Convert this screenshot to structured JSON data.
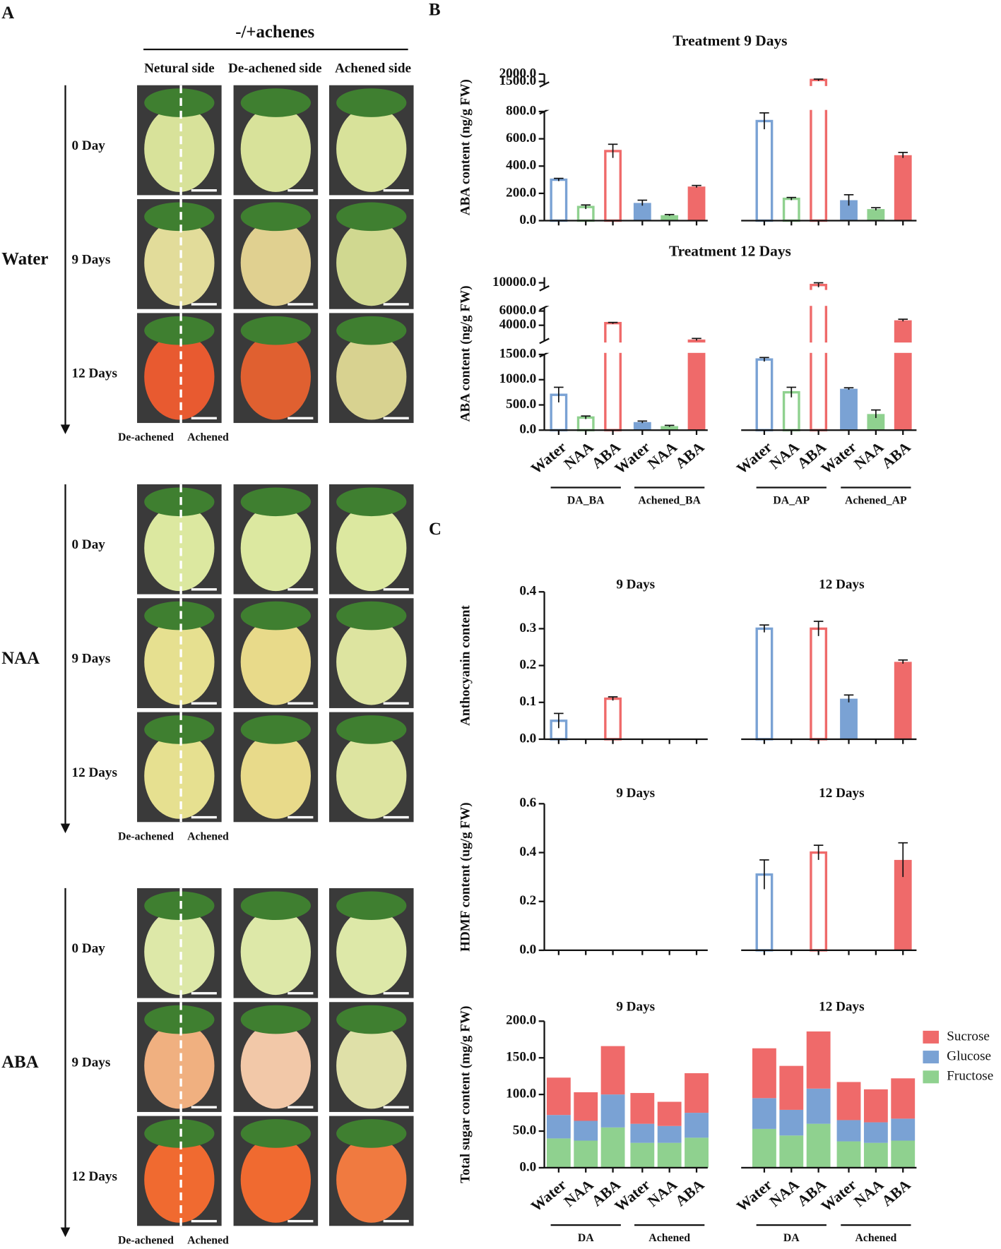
{
  "panel_labels": [
    "A",
    "B",
    "C"
  ],
  "panel_a": {
    "header": "-/+achenes",
    "columns": [
      "Netural side",
      "De-achened side",
      "Achened side"
    ],
    "blocks": [
      {
        "treatment": "Water",
        "rows": [
          "0 Day",
          "9 Days",
          "12 Days"
        ],
        "footer": [
          "De-achened",
          "Achened"
        ]
      },
      {
        "treatment": "NAA",
        "rows": [
          "0 Day",
          "9 Days",
          "12 Days"
        ],
        "footer": [
          "De-achened",
          "Achened"
        ]
      },
      {
        "treatment": "ABA",
        "rows": [
          "0 Day",
          "9 Days",
          "12 Days"
        ],
        "footer": [
          "De-achened",
          "Achened"
        ]
      }
    ]
  },
  "chart_data": [
    {
      "type": "bar",
      "title": "Treatment 9 Days",
      "y_label": "ABA content (ng/g FW)",
      "colors": [
        "#7aa2d4",
        "#8fd18f",
        "#ef6a6a"
      ],
      "filled": [
        false,
        true,
        false,
        true
      ],
      "values": [
        [
          300,
          100,
          510
        ],
        [
          130,
          40,
          250
        ],
        [
          730,
          160,
          1600
        ],
        [
          150,
          85,
          480
        ]
      ],
      "errors": [
        [
          10,
          15,
          50
        ],
        [
          20,
          5,
          8
        ],
        [
          60,
          10,
          60
        ],
        [
          40,
          10,
          20
        ]
      ],
      "y_segments": [
        {
          "ylim": [
            0,
            800
          ],
          "yticks": [
            {
              "value": 0,
              "label": "0.0"
            },
            {
              "value": 200,
              "label": "200.0"
            },
            {
              "value": 400,
              "label": "400.0"
            },
            {
              "value": 600,
              "label": "600.0"
            },
            {
              "value": 800,
              "label": "800.0"
            }
          ]
        },
        {
          "ylim": [
            1300,
            2000
          ],
          "yticks": [
            {
              "value": 1500,
              "label": "1500.0"
            },
            {
              "value": 2000,
              "label": "2000.0"
            }
          ]
        }
      ]
    },
    {
      "type": "bar",
      "title": "Treatment 12 Days",
      "y_label": "ABA content (ng/g FW)",
      "categories": [
        "Water",
        "NAA",
        "ABA"
      ],
      "groups": [
        "DA_BA",
        "Achened_BA",
        "DA_AP",
        "Achened_AP"
      ],
      "colors": [
        "#7aa2d4",
        "#8fd18f",
        "#ef6a6a"
      ],
      "filled": [
        false,
        true,
        false,
        true
      ],
      "values": [
        [
          700,
          250,
          4300
        ],
        [
          160,
          80,
          2000
        ],
        [
          1400,
          750,
          9800
        ],
        [
          820,
          320,
          4700
        ]
      ],
      "errors": [
        [
          150,
          30,
          100
        ],
        [
          20,
          15,
          150
        ],
        [
          40,
          100,
          200
        ],
        [
          20,
          80,
          150
        ]
      ],
      "y_segments": [
        {
          "ylim": [
            0,
            1500
          ],
          "yticks": [
            {
              "value": 0,
              "label": "0.0"
            },
            {
              "value": 500,
              "label": "500.0"
            },
            {
              "value": 1000,
              "label": "1000.0"
            },
            {
              "value": 1500,
              "label": "1500.0"
            }
          ]
        },
        {
          "ylim": [
            1800,
            6500
          ],
          "yticks": [
            {
              "value": 4000,
              "label": "4000.0"
            },
            {
              "value": 6000,
              "label": "6000.0"
            }
          ]
        },
        {
          "ylim": [
            9500,
            10500
          ],
          "yticks": [
            {
              "value": 10000,
              "label": "10000.0"
            }
          ]
        }
      ]
    },
    {
      "type": "bar",
      "panel_titles": [
        "9 Days",
        "12 Days"
      ],
      "y_label": "Anthocyanin content",
      "colors": [
        "#7aa2d4",
        "#8fd18f",
        "#ef6a6a"
      ],
      "filled": [
        false,
        true,
        false,
        true
      ],
      "values": [
        [
          0.05,
          0,
          0.11
        ],
        [
          0,
          0,
          0
        ],
        [
          0.3,
          0,
          0.3
        ],
        [
          0.11,
          0,
          0.21
        ]
      ],
      "errors": [
        [
          0.02,
          0,
          0.005
        ],
        [
          0,
          0,
          0
        ],
        [
          0.01,
          0,
          0.02
        ],
        [
          0.01,
          0,
          0.005
        ]
      ],
      "ylim": [
        0,
        0.4
      ],
      "yticks": [
        {
          "value": 0,
          "label": "0.0"
        },
        0.1,
        0.2,
        0.3,
        0.4
      ]
    },
    {
      "type": "bar",
      "panel_titles": [
        "9 Days",
        "12 Days"
      ],
      "y_label": "HDMF content (ug/g FW)",
      "colors": [
        "#7aa2d4",
        "#8fd18f",
        "#ef6a6a"
      ],
      "filled": [
        false,
        true,
        false,
        true
      ],
      "values": [
        [
          0,
          0,
          0
        ],
        [
          0,
          0,
          0
        ],
        [
          0.31,
          0,
          0.4
        ],
        [
          0,
          0,
          0.37
        ]
      ],
      "errors": [
        [
          0,
          0,
          0
        ],
        [
          0,
          0,
          0
        ],
        [
          0.06,
          0,
          0.03
        ],
        [
          0,
          0,
          0.07
        ]
      ],
      "ylim": [
        0,
        0.6
      ],
      "yticks": [
        {
          "value": 0,
          "label": "0.0"
        },
        0.2,
        0.4,
        0.6
      ]
    },
    {
      "type": "stacked_bar",
      "panel_titles": [
        "9 Days",
        "12 Days"
      ],
      "y_label": "Total sugar content (mg/g FW)",
      "categories": [
        "Water",
        "NAA",
        "ABA"
      ],
      "groups": [
        "DA",
        "Achened",
        "DA",
        "Achened"
      ],
      "series": [
        {
          "name": "Fructose",
          "color": "#8fd18f",
          "values": [
            [
              40,
              37,
              55
            ],
            [
              34,
              34,
              41
            ],
            [
              53,
              44,
              60
            ],
            [
              36,
              34,
              37
            ]
          ]
        },
        {
          "name": "Glucose",
          "color": "#7aa2d4",
          "values": [
            [
              32,
              27,
              45
            ],
            [
              26,
              23,
              34
            ],
            [
              42,
              35,
              48
            ],
            [
              29,
              28,
              30
            ]
          ]
        },
        {
          "name": "Sucrose",
          "color": "#ef6a6a",
          "values": [
            [
              51,
              39,
              66
            ],
            [
              42,
              33,
              54
            ],
            [
              68,
              60,
              78
            ],
            [
              52,
              45,
              55
            ]
          ]
        }
      ],
      "ylim": [
        0,
        200
      ],
      "yticks": [
        {
          "value": 0,
          "label": "0.0"
        },
        {
          "value": 50,
          "label": "50.0"
        },
        {
          "value": 100,
          "label": "100.0"
        },
        {
          "value": 150,
          "label": "150.0"
        },
        {
          "value": 200,
          "label": "200.0"
        }
      ]
    }
  ]
}
